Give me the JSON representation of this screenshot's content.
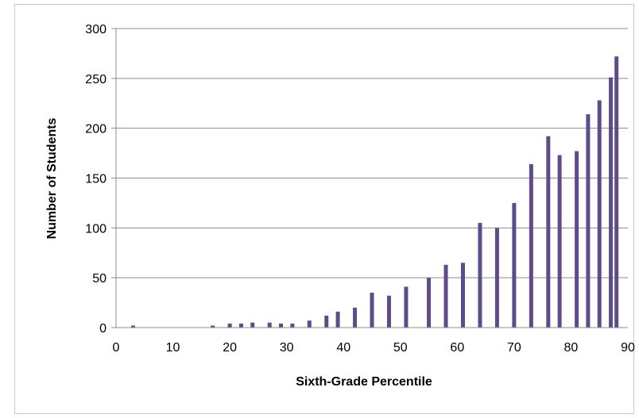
{
  "chart_data": {
    "type": "bar",
    "title": "",
    "xlabel": "Sixth-Grade Percentile",
    "ylabel": "Number of Students",
    "xlim": [
      0,
      90
    ],
    "ylim": [
      0,
      300
    ],
    "xticks": [
      0,
      10,
      20,
      30,
      40,
      50,
      60,
      70,
      80,
      90
    ],
    "yticks": [
      0,
      50,
      100,
      150,
      200,
      250,
      300
    ],
    "grid": "horizontal",
    "legend": "none",
    "bar_color": "#5f4b8b",
    "x": [
      3,
      17,
      20,
      22,
      24,
      27,
      29,
      31,
      34,
      37,
      39,
      42,
      45,
      48,
      51,
      55,
      58,
      61,
      64,
      67,
      70,
      73,
      76,
      78,
      81,
      83,
      85,
      87,
      88
    ],
    "values": [
      2,
      2,
      4,
      4,
      5,
      5,
      4,
      4,
      7,
      12,
      16,
      20,
      35,
      32,
      41,
      50,
      63,
      65,
      105,
      100,
      125,
      164,
      192,
      173,
      177,
      214,
      228,
      251,
      272
    ]
  }
}
